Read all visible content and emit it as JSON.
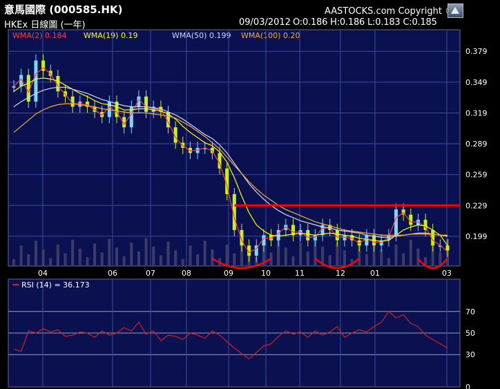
{
  "header": {
    "title": "意馬國際 (000585.HK)",
    "subtitle": "HKEx 日線圖 (一年)",
    "copyright": "AASTOCKS.com Copyright ©",
    "date": "09/03/2012",
    "ohlc": "O:0.186  H:0.186  L:0.183  C:0.185",
    "logo_icon": "aastocks-logo-icon"
  },
  "legend": [
    {
      "text": "WMA(2) 0.184",
      "color": "#ff3b3b"
    },
    {
      "text": "WMA(19) 0.19",
      "color": "#ffff00"
    },
    {
      "text": "WMA(50) 0.199",
      "color": "#cfd6ff"
    },
    {
      "text": "WMA(100) 0.20",
      "color": "#f0b030"
    }
  ],
  "rsi_label": "RSI (14) = 36.173",
  "colors": {
    "background": "#0b1150",
    "grid": "#3b4aa0",
    "up_candle": "#7ad7ff",
    "down_candle": "#c8f020",
    "resistance": "#ff0000",
    "rsi": "#d02020",
    "volume": "#3c3c66"
  },
  "chart_data": [
    {
      "type": "line",
      "panel": "price",
      "yticks": [
        0.199,
        0.229,
        0.259,
        0.289,
        0.319,
        0.349,
        0.379
      ],
      "ylim": [
        0.17,
        0.4
      ],
      "xticks": [
        "04",
        "06",
        "07",
        "08",
        "09",
        "10",
        "11",
        "12",
        "01",
        "03"
      ],
      "grid": true,
      "series": [
        {
          "name": "Close",
          "values": [
            0.345,
            0.356,
            0.33,
            0.37,
            0.36,
            0.355,
            0.34,
            0.335,
            0.325,
            0.33,
            0.325,
            0.32,
            0.315,
            0.33,
            0.315,
            0.305,
            0.325,
            0.335,
            0.32,
            0.325,
            0.32,
            0.305,
            0.29,
            0.285,
            0.28,
            0.285,
            0.285,
            0.28,
            0.265,
            0.24,
            0.205,
            0.19,
            0.18,
            0.19,
            0.2,
            0.195,
            0.205,
            0.21,
            0.2,
            0.205,
            0.195,
            0.2,
            0.21,
            0.205,
            0.195,
            0.2,
            0.195,
            0.19,
            0.2,
            0.19,
            0.195,
            0.2,
            0.225,
            0.22,
            0.21,
            0.215,
            0.205,
            0.19,
            0.19,
            0.185
          ]
        },
        {
          "name": "WMA(2)",
          "values": [
            0.345,
            0.352,
            0.339,
            0.357,
            0.363,
            0.357,
            0.345,
            0.337,
            0.328,
            0.328,
            0.327,
            0.322,
            0.317,
            0.325,
            0.32,
            0.308,
            0.318,
            0.332,
            0.325,
            0.323,
            0.322,
            0.31,
            0.295,
            0.287,
            0.282,
            0.283,
            0.285,
            0.282,
            0.27,
            0.248,
            0.217,
            0.195,
            0.183,
            0.187,
            0.197,
            0.197,
            0.202,
            0.208,
            0.203,
            0.203,
            0.198,
            0.198,
            0.207,
            0.207,
            0.198,
            0.198,
            0.197,
            0.192,
            0.197,
            0.193,
            0.193,
            0.198,
            0.217,
            0.222,
            0.213,
            0.213,
            0.208,
            0.195,
            0.19,
            0.184
          ]
        },
        {
          "name": "WMA(19)",
          "values": [
            0.34,
            0.345,
            0.348,
            0.352,
            0.353,
            0.352,
            0.35,
            0.346,
            0.342,
            0.338,
            0.335,
            0.331,
            0.328,
            0.327,
            0.325,
            0.322,
            0.322,
            0.323,
            0.323,
            0.322,
            0.321,
            0.318,
            0.313,
            0.306,
            0.3,
            0.295,
            0.29,
            0.287,
            0.281,
            0.271,
            0.256,
            0.238,
            0.222,
            0.21,
            0.204,
            0.2,
            0.199,
            0.2,
            0.201,
            0.202,
            0.201,
            0.2,
            0.201,
            0.202,
            0.201,
            0.2,
            0.199,
            0.197,
            0.196,
            0.195,
            0.194,
            0.195,
            0.2,
            0.205,
            0.208,
            0.21,
            0.209,
            0.205,
            0.2,
            0.19
          ]
        },
        {
          "name": "WMA(50)",
          "values": [
            0.325,
            0.33,
            0.334,
            0.338,
            0.341,
            0.343,
            0.344,
            0.344,
            0.342,
            0.34,
            0.338,
            0.335,
            0.332,
            0.33,
            0.328,
            0.326,
            0.325,
            0.325,
            0.325,
            0.324,
            0.323,
            0.32,
            0.317,
            0.313,
            0.308,
            0.303,
            0.298,
            0.294,
            0.288,
            0.28,
            0.27,
            0.26,
            0.25,
            0.242,
            0.235,
            0.229,
            0.224,
            0.22,
            0.217,
            0.214,
            0.212,
            0.21,
            0.208,
            0.207,
            0.205,
            0.204,
            0.203,
            0.202,
            0.2,
            0.199,
            0.198,
            0.198,
            0.199,
            0.2,
            0.201,
            0.202,
            0.202,
            0.201,
            0.2,
            0.199
          ]
        },
        {
          "name": "WMA(100)",
          "values": [
            0.3,
            0.306,
            0.312,
            0.318,
            0.322,
            0.325,
            0.327,
            0.328,
            0.328,
            0.327,
            0.326,
            0.325,
            0.323,
            0.322,
            0.321,
            0.32,
            0.319,
            0.319,
            0.319,
            0.318,
            0.317,
            0.316,
            0.314,
            0.31,
            0.306,
            0.301,
            0.296,
            0.29,
            0.284,
            0.276,
            0.268,
            0.26,
            0.252,
            0.245,
            0.239,
            0.234,
            0.229,
            0.225,
            0.222,
            0.219,
            0.216,
            0.213,
            0.211,
            0.209,
            0.207,
            0.205,
            0.204,
            0.203,
            0.202,
            0.201,
            0.2,
            0.2,
            0.2,
            0.2,
            0.201,
            0.201,
            0.201,
            0.201,
            0.2,
            0.2
          ]
        }
      ],
      "annotations": [
        {
          "type": "hline",
          "value": 0.229,
          "color": "#ff0000",
          "from_index": 30,
          "to_index": 59
        },
        {
          "type": "arc",
          "color": "#ff0000",
          "from_index": 27,
          "to_index": 35
        },
        {
          "type": "arc",
          "color": "#ff0000",
          "from_index": 41,
          "to_index": 47
        },
        {
          "type": "arc",
          "color": "#ff0000",
          "from_index": 55,
          "to_index": 59
        }
      ]
    },
    {
      "type": "line",
      "panel": "rsi",
      "yticks": [
        0,
        30,
        50,
        70
      ],
      "ylim": [
        0,
        100
      ],
      "grid": true,
      "series": [
        {
          "name": "RSI (14)",
          "values": [
            35,
            33,
            52,
            50,
            54,
            51,
            53,
            47,
            48,
            51,
            50,
            46,
            52,
            48,
            50,
            55,
            52,
            60,
            49,
            52,
            43,
            48,
            47,
            44,
            50,
            48,
            45,
            52,
            48,
            42,
            36,
            31,
            26,
            32,
            38,
            40,
            47,
            52,
            49,
            51,
            46,
            52,
            48,
            51,
            56,
            46,
            50,
            53,
            51,
            56,
            60,
            70,
            64,
            67,
            59,
            56,
            48,
            44,
            40,
            36
          ]
        }
      ]
    }
  ]
}
